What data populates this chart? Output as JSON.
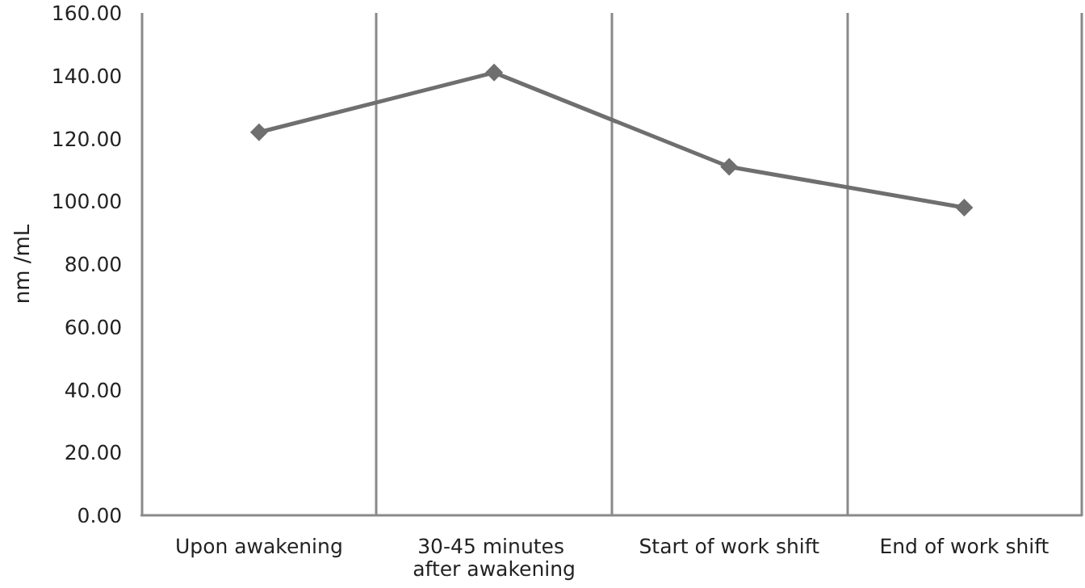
{
  "chart_data": {
    "type": "line",
    "ylabel": "nm /mL",
    "categories": [
      "Upon awakening",
      "30-45 minutes after awakening",
      "Start of work shift",
      "End of work shift"
    ],
    "series": [
      {
        "color": "#6f6f6f",
        "values": [
          122,
          141,
          111,
          98
        ]
      }
    ],
    "ylim": [
      0,
      160
    ],
    "yticks": [
      {
        "value": 0,
        "label": "0.00"
      },
      {
        "value": 20,
        "label": "20.00"
      },
      {
        "value": 40,
        "label": "40.00"
      },
      {
        "value": 60,
        "label": "60.00"
      },
      {
        "value": 80,
        "label": "80.00"
      },
      {
        "value": 100,
        "label": "100.00"
      },
      {
        "value": 120,
        "label": "120.00"
      },
      {
        "value": 140,
        "label": "140.00"
      },
      {
        "value": 160,
        "label": "160.00"
      }
    ],
    "grid": "x",
    "marker": "diamond",
    "line_style": "solid"
  }
}
